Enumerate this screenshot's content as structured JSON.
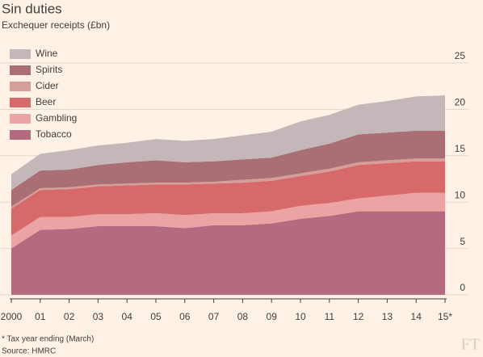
{
  "chart_data": {
    "type": "stacked-area",
    "title": "Sin duties",
    "subtitle": "Exchequer receipts (£bn)",
    "categories": [
      "2000",
      "01",
      "02",
      "03",
      "04",
      "05",
      "06",
      "07",
      "08",
      "09",
      "10",
      "11",
      "12",
      "13",
      "14",
      "15*"
    ],
    "series": [
      {
        "name": "Wine",
        "color": "#c4b7b9",
        "values": [
          1.7,
          1.8,
          2.1,
          2.1,
          2.1,
          2.3,
          2.3,
          2.4,
          2.6,
          2.8,
          3.1,
          3.1,
          3.2,
          3.4,
          3.7,
          3.8
        ]
      },
      {
        "name": "Spirits",
        "color": "#a96f75",
        "values": [
          1.8,
          1.9,
          1.9,
          2.1,
          2.3,
          2.4,
          2.2,
          2.2,
          2.2,
          2.2,
          2.5,
          2.7,
          3.0,
          3.0,
          3.0,
          3.0
        ]
      },
      {
        "name": "Cider",
        "color": "#d59e98",
        "values": [
          0.2,
          0.2,
          0.2,
          0.2,
          0.2,
          0.2,
          0.2,
          0.2,
          0.3,
          0.3,
          0.3,
          0.3,
          0.3,
          0.3,
          0.3,
          0.3
        ]
      },
      {
        "name": "Beer",
        "color": "#d8696a",
        "values": [
          2.9,
          2.9,
          3.0,
          3.0,
          3.1,
          3.1,
          3.3,
          3.2,
          3.3,
          3.3,
          3.2,
          3.4,
          3.6,
          3.5,
          3.4,
          3.4
        ]
      },
      {
        "name": "Gambling",
        "color": "#eba3a3",
        "values": [
          1.4,
          1.4,
          1.3,
          1.3,
          1.3,
          1.4,
          1.4,
          1.3,
          1.3,
          1.3,
          1.4,
          1.4,
          1.4,
          1.7,
          2.0,
          2.0
        ]
      },
      {
        "name": "Tobacco",
        "color": "#b46b80",
        "values": [
          5.0,
          7.0,
          7.1,
          7.4,
          7.4,
          7.4,
          7.2,
          7.5,
          7.5,
          7.7,
          8.2,
          8.5,
          9.0,
          9.0,
          9.0,
          9.0
        ]
      }
    ],
    "ylim": [
      0,
      25
    ],
    "yticks": [
      0,
      5,
      10,
      15,
      20,
      25
    ],
    "grid": true,
    "legend": "top-left",
    "footnote": "* Tax year ending (March)",
    "source": "Source: HMRC",
    "logo": "FT"
  }
}
